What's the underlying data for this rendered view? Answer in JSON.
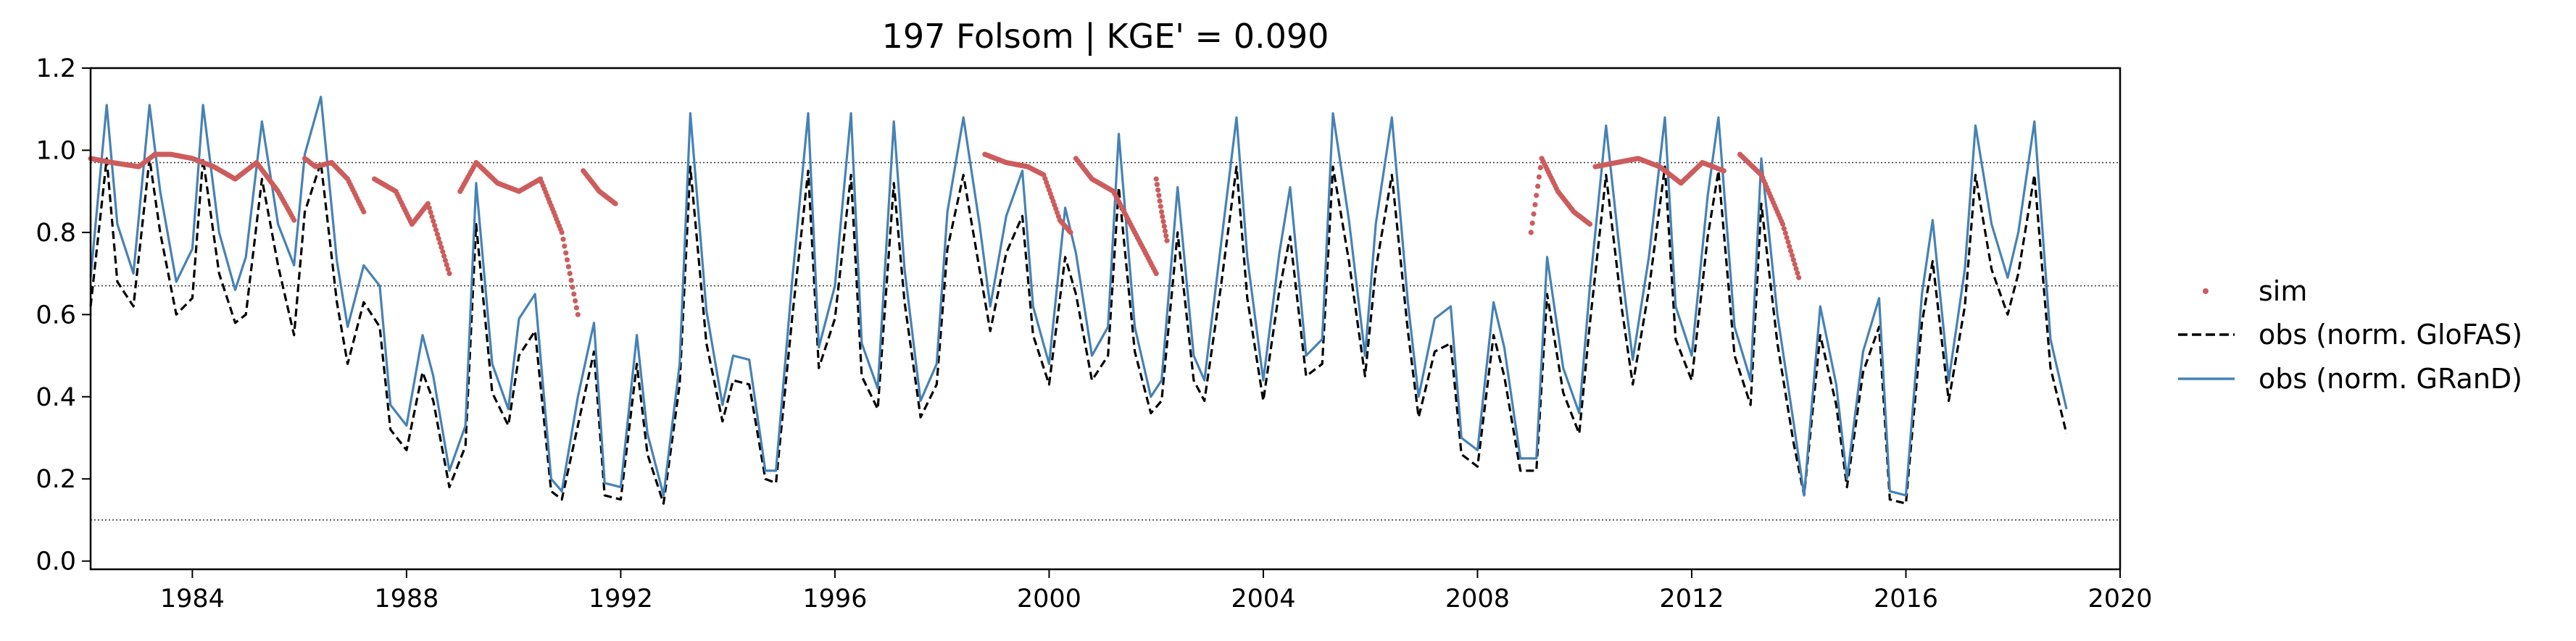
{
  "chart_data": {
    "type": "line",
    "title": "197  Folsom | KGE' = 0.090",
    "xlabel": "",
    "ylabel": "",
    "xlim": [
      1982.1,
      2020.0
    ],
    "ylim": [
      -0.02,
      1.2
    ],
    "x_ticks": [
      1984,
      1988,
      1992,
      1996,
      2000,
      2004,
      2008,
      2012,
      2016,
      2020
    ],
    "x_tick_labels": [
      "1984",
      "1988",
      "1992",
      "1996",
      "2000",
      "2004",
      "2008",
      "2012",
      "2016",
      "2020"
    ],
    "y_ticks": [
      0.0,
      0.2,
      0.4,
      0.6,
      0.8,
      1.0,
      1.2
    ],
    "y_tick_labels": [
      "0.0",
      "0.2",
      "0.4",
      "0.6",
      "0.8",
      "1.0",
      "1.2"
    ],
    "reference_lines": [
      0.97,
      0.67,
      0.1
    ],
    "grid": false,
    "legend": {
      "position": "outside-right",
      "entries": [
        "sim",
        "obs (norm. GloFAS)",
        "obs (norm. GRanD)"
      ]
    },
    "colors": {
      "sim": "#cd5c5c",
      "glofas": "#000000",
      "grand": "#4682b4",
      "reference": "#333333"
    },
    "series": [
      {
        "name": "obs (norm. GRanD)",
        "style": "solid",
        "x": [
          1982.1,
          1982.4,
          1982.6,
          1982.9,
          1983.2,
          1983.4,
          1983.7,
          1984.0,
          1984.2,
          1984.5,
          1984.8,
          1985.0,
          1985.3,
          1985.6,
          1985.9,
          1986.1,
          1986.4,
          1986.7,
          1986.9,
          1987.2,
          1987.5,
          1987.7,
          1988.0,
          1988.3,
          1988.5,
          1988.8,
          1989.1,
          1989.3,
          1989.6,
          1989.9,
          1990.1,
          1990.4,
          1990.7,
          1990.9,
          1991.2,
          1991.5,
          1991.7,
          1992.0,
          1992.3,
          1992.5,
          1992.8,
          1993.1,
          1993.3,
          1993.6,
          1993.9,
          1994.1,
          1994.4,
          1994.7,
          1994.9,
          1995.2,
          1995.5,
          1995.7,
          1996.0,
          1996.3,
          1996.5,
          1996.8,
          1997.1,
          1997.3,
          1997.6,
          1997.9,
          1998.1,
          1998.4,
          1998.7,
          1998.9,
          1999.2,
          1999.5,
          1999.7,
          2000.0,
          2000.3,
          2000.5,
          2000.8,
          2001.1,
          2001.3,
          2001.6,
          2001.9,
          2002.1,
          2002.4,
          2002.7,
          2002.9,
          2003.2,
          2003.5,
          2003.7,
          2004.0,
          2004.3,
          2004.5,
          2004.8,
          2005.1,
          2005.3,
          2005.6,
          2005.9,
          2006.1,
          2006.4,
          2006.7,
          2006.9,
          2007.2,
          2007.5,
          2007.7,
          2008.0,
          2008.3,
          2008.5,
          2008.8,
          2009.1,
          2009.3,
          2009.6,
          2009.9,
          2010.1,
          2010.4,
          2010.7,
          2010.9,
          2011.2,
          2011.5,
          2011.7,
          2012.0,
          2012.3,
          2012.5,
          2012.8,
          2013.1,
          2013.3,
          2013.6,
          2013.9,
          2014.1,
          2014.4,
          2014.7,
          2014.9,
          2015.2,
          2015.5,
          2015.7,
          2016.0,
          2016.3,
          2016.5,
          2016.8,
          2017.1,
          2017.3,
          2017.6,
          2017.9,
          2018.1,
          2018.4,
          2018.7,
          2019.0
        ],
        "values": [
          0.69,
          1.11,
          0.82,
          0.7,
          1.11,
          0.9,
          0.68,
          0.76,
          1.11,
          0.8,
          0.66,
          0.74,
          1.07,
          0.82,
          0.72,
          0.99,
          1.13,
          0.73,
          0.57,
          0.72,
          0.67,
          0.38,
          0.33,
          0.55,
          0.45,
          0.22,
          0.33,
          0.92,
          0.48,
          0.37,
          0.59,
          0.65,
          0.2,
          0.17,
          0.4,
          0.58,
          0.19,
          0.18,
          0.55,
          0.31,
          0.16,
          0.48,
          1.09,
          0.61,
          0.38,
          0.5,
          0.49,
          0.22,
          0.22,
          0.68,
          1.09,
          0.52,
          0.67,
          1.09,
          0.53,
          0.42,
          1.07,
          0.71,
          0.39,
          0.48,
          0.85,
          1.08,
          0.82,
          0.62,
          0.84,
          0.95,
          0.62,
          0.48,
          0.86,
          0.75,
          0.5,
          0.57,
          1.04,
          0.57,
          0.4,
          0.44,
          0.91,
          0.5,
          0.44,
          0.76,
          1.08,
          0.74,
          0.44,
          0.75,
          0.91,
          0.5,
          0.54,
          1.09,
          0.83,
          0.5,
          0.82,
          1.08,
          0.63,
          0.4,
          0.59,
          0.62,
          0.3,
          0.27,
          0.63,
          0.52,
          0.25,
          0.25,
          0.74,
          0.47,
          0.36,
          0.67,
          1.06,
          0.7,
          0.49,
          0.74,
          1.08,
          0.62,
          0.5,
          0.89,
          1.08,
          0.57,
          0.44,
          0.98,
          0.6,
          0.34,
          0.16,
          0.62,
          0.43,
          0.2,
          0.51,
          0.64,
          0.17,
          0.16,
          0.65,
          0.83,
          0.44,
          0.71,
          1.06,
          0.82,
          0.69,
          0.8,
          1.07,
          0.54,
          0.37
        ],
        "color": "#4682b4"
      },
      {
        "name": "obs (norm. GloFAS)",
        "style": "dashed",
        "x": [
          1982.1,
          1982.4,
          1982.6,
          1982.9,
          1983.2,
          1983.4,
          1983.7,
          1984.0,
          1984.2,
          1984.5,
          1984.8,
          1985.0,
          1985.3,
          1985.6,
          1985.9,
          1986.1,
          1986.4,
          1986.7,
          1986.9,
          1987.2,
          1987.5,
          1987.7,
          1988.0,
          1988.3,
          1988.5,
          1988.8,
          1989.1,
          1989.3,
          1989.6,
          1989.9,
          1990.1,
          1990.4,
          1990.7,
          1990.9,
          1991.2,
          1991.5,
          1991.7,
          1992.0,
          1992.3,
          1992.5,
          1992.8,
          1993.1,
          1993.3,
          1993.6,
          1993.9,
          1994.1,
          1994.4,
          1994.7,
          1994.9,
          1995.2,
          1995.5,
          1995.7,
          1996.0,
          1996.3,
          1996.5,
          1996.8,
          1997.1,
          1997.3,
          1997.6,
          1997.9,
          1998.1,
          1998.4,
          1998.7,
          1998.9,
          1999.2,
          1999.5,
          1999.7,
          2000.0,
          2000.3,
          2000.5,
          2000.8,
          2001.1,
          2001.3,
          2001.6,
          2001.9,
          2002.1,
          2002.4,
          2002.7,
          2002.9,
          2003.2,
          2003.5,
          2003.7,
          2004.0,
          2004.3,
          2004.5,
          2004.8,
          2005.1,
          2005.3,
          2005.6,
          2005.9,
          2006.1,
          2006.4,
          2006.7,
          2006.9,
          2007.2,
          2007.5,
          2007.7,
          2008.0,
          2008.3,
          2008.5,
          2008.8,
          2009.1,
          2009.3,
          2009.6,
          2009.9,
          2010.1,
          2010.4,
          2010.7,
          2010.9,
          2011.2,
          2011.5,
          2011.7,
          2012.0,
          2012.3,
          2012.5,
          2012.8,
          2013.1,
          2013.3,
          2013.6,
          2013.9,
          2014.1,
          2014.4,
          2014.7,
          2014.9,
          2015.2,
          2015.5,
          2015.7,
          2016.0,
          2016.3,
          2016.5,
          2016.8,
          2017.1,
          2017.3,
          2017.6,
          2017.9,
          2018.1,
          2018.4,
          2018.7,
          2019.0
        ],
        "values": [
          0.62,
          0.98,
          0.68,
          0.62,
          0.98,
          0.8,
          0.6,
          0.64,
          0.98,
          0.7,
          0.58,
          0.6,
          0.93,
          0.72,
          0.55,
          0.85,
          0.97,
          0.63,
          0.48,
          0.63,
          0.57,
          0.32,
          0.27,
          0.46,
          0.39,
          0.18,
          0.28,
          0.82,
          0.41,
          0.33,
          0.5,
          0.56,
          0.17,
          0.15,
          0.33,
          0.51,
          0.16,
          0.15,
          0.48,
          0.26,
          0.14,
          0.43,
          0.96,
          0.53,
          0.34,
          0.44,
          0.43,
          0.2,
          0.19,
          0.59,
          0.95,
          0.47,
          0.59,
          0.94,
          0.45,
          0.37,
          0.92,
          0.63,
          0.35,
          0.43,
          0.76,
          0.94,
          0.71,
          0.56,
          0.75,
          0.84,
          0.55,
          0.43,
          0.74,
          0.65,
          0.44,
          0.5,
          0.91,
          0.51,
          0.36,
          0.39,
          0.8,
          0.44,
          0.39,
          0.66,
          0.96,
          0.64,
          0.39,
          0.66,
          0.79,
          0.45,
          0.48,
          0.96,
          0.73,
          0.45,
          0.71,
          0.94,
          0.56,
          0.35,
          0.51,
          0.53,
          0.26,
          0.23,
          0.55,
          0.45,
          0.22,
          0.22,
          0.65,
          0.41,
          0.31,
          0.58,
          0.94,
          0.61,
          0.43,
          0.66,
          0.96,
          0.54,
          0.44,
          0.79,
          0.95,
          0.5,
          0.38,
          0.87,
          0.53,
          0.29,
          0.16,
          0.55,
          0.38,
          0.18,
          0.46,
          0.57,
          0.15,
          0.14,
          0.58,
          0.73,
          0.39,
          0.62,
          0.94,
          0.71,
          0.6,
          0.7,
          0.94,
          0.47,
          0.31
        ],
        "color": "#000000"
      },
      {
        "name": "sim",
        "style": "points",
        "segments": [
          {
            "x": [
              1982.1,
              1982.5,
              1983.0,
              1983.3,
              1983.6,
              1984.0,
              1984.4,
              1984.8,
              1985.2,
              1985.6,
              1985.9
            ],
            "values": [
              0.98,
              0.97,
              0.96,
              0.99,
              0.99,
              0.98,
              0.96,
              0.93,
              0.97,
              0.9,
              0.83
            ]
          },
          {
            "x": [
              1986.1,
              1986.3,
              1986.6,
              1986.9,
              1987.2
            ],
            "values": [
              0.98,
              0.96,
              0.97,
              0.93,
              0.85
            ]
          },
          {
            "x": [
              1987.4,
              1987.8,
              1988.1,
              1988.4,
              1988.8
            ],
            "values": [
              0.93,
              0.9,
              0.82,
              0.87,
              0.7
            ]
          },
          {
            "x": [
              1989.0,
              1989.3,
              1989.7,
              1990.1,
              1990.5,
              1990.9,
              1991.2
            ],
            "values": [
              0.9,
              0.97,
              0.92,
              0.9,
              0.93,
              0.8,
              0.6
            ]
          },
          {
            "x": [
              1991.3,
              1991.6,
              1991.9
            ],
            "values": [
              0.95,
              0.9,
              0.87
            ]
          },
          {
            "x": [
              1998.8,
              1999.2,
              1999.6,
              1999.9,
              2000.2,
              2000.4
            ],
            "values": [
              0.99,
              0.97,
              0.96,
              0.94,
              0.83,
              0.8
            ]
          },
          {
            "x": [
              2000.5,
              2000.8,
              2001.2,
              2001.6,
              2002.0
            ],
            "values": [
              0.98,
              0.93,
              0.9,
              0.8,
              0.7
            ]
          },
          {
            "x": [
              2002.0,
              2002.1,
              2002.2
            ],
            "values": [
              0.93,
              0.85,
              0.78
            ]
          },
          {
            "x": [
              2009.0,
              2009.2,
              2009.5,
              2009.8,
              2010.1
            ],
            "values": [
              0.8,
              0.98,
              0.9,
              0.85,
              0.82
            ]
          },
          {
            "x": [
              2010.2,
              2010.6,
              2011.0,
              2011.4,
              2011.8,
              2012.2,
              2012.6
            ],
            "values": [
              0.96,
              0.97,
              0.98,
              0.96,
              0.92,
              0.97,
              0.95
            ]
          },
          {
            "x": [
              2012.9,
              2013.3,
              2013.7,
              2014.0
            ],
            "values": [
              0.99,
              0.94,
              0.82,
              0.69
            ]
          }
        ],
        "color": "#cd5c5c"
      }
    ]
  }
}
